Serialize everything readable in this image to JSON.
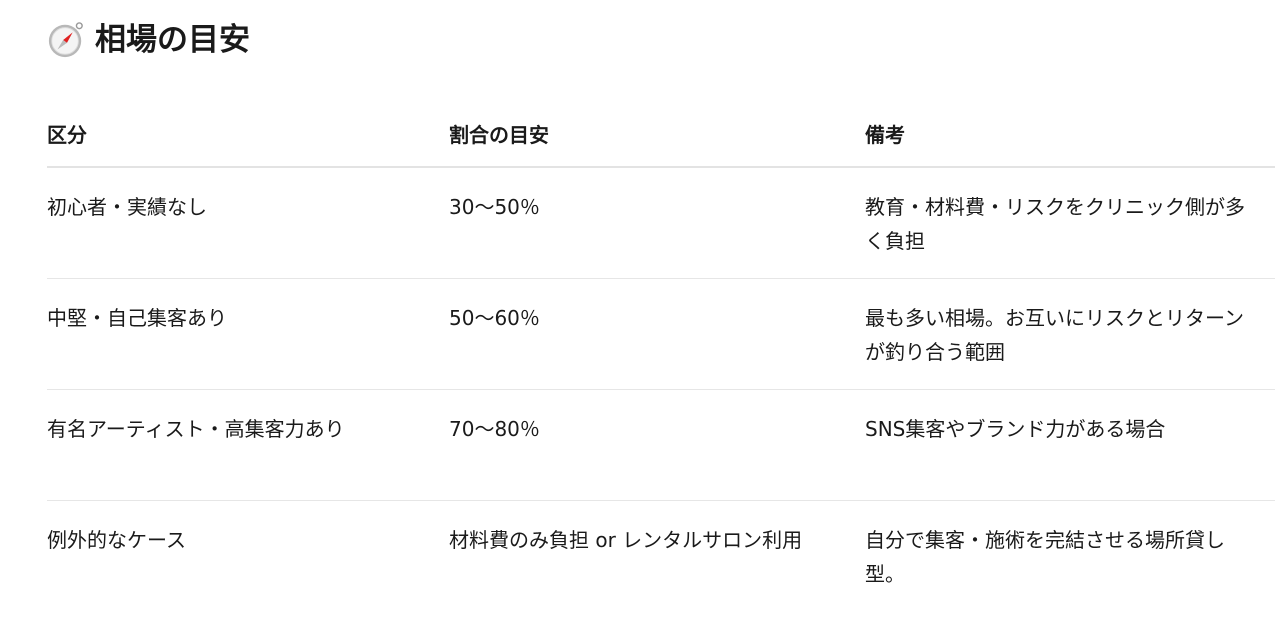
{
  "heading": {
    "icon": "compass-icon",
    "title": "相場の目安"
  },
  "table": {
    "headers": [
      "区分",
      "割合の目安",
      "備考"
    ],
    "rows": [
      [
        "初心者・実績なし",
        "30〜50％",
        "教育・材料費・リスクをクリニック側が多く負担"
      ],
      [
        "中堅・自己集客あり",
        "50〜60％",
        "最も多い相場。お互いにリスクとリターンが釣り合う範囲"
      ],
      [
        "有名アーティスト・高集客力あり",
        "70〜80％",
        "SNS集客やブランド力がある場合"
      ],
      [
        "例外的なケース",
        "材料費のみ負担 or レンタルサロン利用",
        "自分で集客・施術を完結させる場所貸し型。"
      ]
    ]
  }
}
